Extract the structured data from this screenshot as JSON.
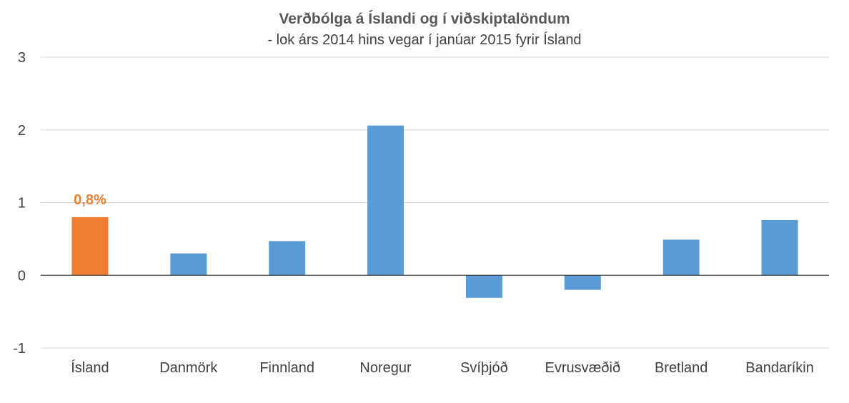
{
  "chart_data": {
    "type": "bar",
    "title": "Verðbólga á Íslandi og í viðskiptalöndum",
    "subtitle": "- lok árs 2014 hins vegar í janúar 2015 fyrir Ísland",
    "categories": [
      "Ísland",
      "Danmörk",
      "Finnland",
      "Noregur",
      "Svíþjóð",
      "Evrusvæðið",
      "Bretland",
      "Bandaríkin"
    ],
    "values": [
      0.8,
      0.3,
      0.47,
      2.06,
      -0.31,
      -0.2,
      0.49,
      0.76
    ],
    "bar_colors": [
      "#ed7d31",
      "#5b9bd5",
      "#5b9bd5",
      "#5b9bd5",
      "#5b9bd5",
      "#5b9bd5",
      "#5b9bd5",
      "#5b9bd5"
    ],
    "data_labels": [
      {
        "index": 0,
        "text": "0,8%",
        "color": "#ed7d31"
      }
    ],
    "ylim": [
      -1,
      3
    ],
    "yticks": [
      -1,
      0,
      1,
      2,
      3
    ],
    "xlabel": "",
    "ylabel": "",
    "grid": true,
    "legend": "none"
  }
}
